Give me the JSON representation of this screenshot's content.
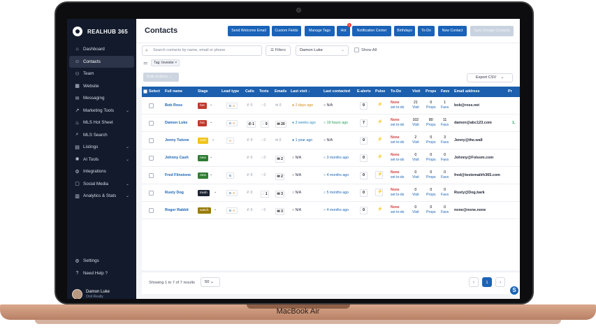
{
  "device_label": "MacBook Air",
  "brand": "REALHUB 365",
  "sidebar": {
    "items": [
      {
        "label": "Dashboard",
        "icon": "home-icon",
        "glyph": "⌂"
      },
      {
        "label": "Contacts",
        "icon": "contacts-icon",
        "glyph": "☺",
        "active": true
      },
      {
        "label": "Team",
        "icon": "team-icon",
        "glyph": "⚇"
      },
      {
        "label": "Website",
        "icon": "website-icon",
        "glyph": "▦"
      },
      {
        "label": "Messaging",
        "icon": "messaging-icon",
        "glyph": "✉"
      },
      {
        "label": "Marketing Tools",
        "icon": "chart-icon",
        "glyph": "↗",
        "chevron": true
      },
      {
        "label": "MLS Hot Sheet",
        "icon": "flame-icon",
        "glyph": "♨"
      },
      {
        "label": "MLS Search",
        "icon": "search-icon",
        "glyph": "⌕"
      },
      {
        "label": "Listings",
        "icon": "listings-icon",
        "glyph": "▤",
        "chevron": true
      },
      {
        "label": "AI Tools",
        "icon": "ai-icon",
        "glyph": "✺",
        "chevron": true
      },
      {
        "label": "Integrations",
        "icon": "integrations-icon",
        "glyph": "⚙"
      },
      {
        "label": "Social Media",
        "icon": "social-icon",
        "glyph": "▢",
        "chevron": true
      },
      {
        "label": "Analytics & Stats",
        "icon": "analytics-icon",
        "glyph": "▥",
        "chevron": true
      }
    ],
    "settings": "Settings",
    "help": "Need Help ?",
    "user_name": "Damon Luke",
    "user_org": "Onit Realty"
  },
  "header": {
    "title": "Contacts",
    "buttons": [
      "Send Welcome Email",
      "Custom Fields",
      "Manage Tags",
      "Hot",
      "Notification Center",
      "Birthdays",
      "To-Do",
      "New Contact",
      "Sync Google Contacts"
    ],
    "hot_badge": "1"
  },
  "filters": {
    "search_placeholder": "Search contacts by name, email or phone",
    "filters_label": "Filters",
    "selected_user": "Damon Luke",
    "show_all": "Show All",
    "tag": "Tag: Investor ×",
    "bulk_actions": "Bulk actions",
    "export": "Export CSV"
  },
  "table": {
    "headers": [
      "Select",
      "Full name",
      "Stage",
      "Lead type",
      "Calls",
      "Texts",
      "Emails",
      "Last visit ↓",
      "Last contacted",
      "E-alerts",
      "Pulse",
      "To-Do",
      "Visit",
      "Props",
      "Favs",
      "Email address",
      "Pr"
    ],
    "rows": [
      {
        "name": "Bob Ross",
        "stage": "hot",
        "stage_color": "#c0392b",
        "lead": [
          "B",
          "S"
        ],
        "calls": "0",
        "texts": "0",
        "emails": "0",
        "emails_box": false,
        "calls_box": false,
        "texts_box": false,
        "last_visit": "2 days ago",
        "lv_color": "#d68910",
        "last_contacted": "N/A",
        "lc_color": "#2b3243",
        "ealerts": "0",
        "pulse": "⚡",
        "pulse_green": false,
        "todo_none": "None",
        "todo_set": "set to-do",
        "visit": "21",
        "props": "0",
        "favs": "1",
        "email": "bob@ross.net",
        "extra": ""
      },
      {
        "name": "Damon Luke",
        "stage": "hot",
        "stage_color": "#c0392b",
        "lead": [
          "B",
          "S"
        ],
        "calls": "1",
        "texts": "9",
        "emails": "20",
        "emails_box": true,
        "calls_box": true,
        "texts_box": true,
        "last_visit": "3 weeks ago",
        "lv_color": "#2a8bbf",
        "last_contacted": "19 hours ago",
        "lc_color": "#1e9e57",
        "ealerts": "7",
        "pulse": "⚡",
        "pulse_green": false,
        "todo_none": "None",
        "todo_set": "set to-do",
        "visit": "102",
        "props": "80",
        "favs": "11",
        "email": "damon@abc123.com",
        "extra": "1."
      },
      {
        "name": "Jenny Tutone",
        "stage": "cold",
        "stage_color": "#f0c419",
        "lead": [
          "S"
        ],
        "calls": "0",
        "texts": "0",
        "emails": "0",
        "emails_box": false,
        "calls_box": false,
        "texts_box": false,
        "last_visit": "1 year ago",
        "lv_color": "#1b64b5",
        "last_contacted": "N/A",
        "lc_color": "#2b3243",
        "ealerts": "0",
        "pulse": "⚡",
        "pulse_green": false,
        "todo_none": "None",
        "todo_set": "set to-do",
        "visit": "2",
        "props": "0",
        "favs": "3",
        "email": "Jenny@the.wall",
        "extra": ""
      },
      {
        "name": "Johnny Cash",
        "stage": "new",
        "stage_color": "#2e7d32",
        "lead": [],
        "calls": "0",
        "texts": "0",
        "emails": "2",
        "emails_box": true,
        "calls_box": false,
        "texts_box": false,
        "last_visit": "N/A",
        "lv_color": "#2b3243",
        "last_contacted": "3 months ago",
        "lc_color": "#1b64b5",
        "ealerts": "0",
        "pulse": "⚡",
        "pulse_green": false,
        "todo_none": "None",
        "todo_set": "set to-do",
        "visit": "0",
        "props": "0",
        "favs": "0",
        "email": "Johnny@Folsom.com",
        "extra": ""
      },
      {
        "name": "Fred Flinstone",
        "stage": "new",
        "stage_color": "#2e7d32",
        "lead": [
          "B"
        ],
        "calls": "0",
        "texts": "0",
        "emails": "2",
        "emails_box": true,
        "calls_box": false,
        "texts_box": false,
        "last_visit": "N/A",
        "lv_color": "#2b3243",
        "last_contacted": "4 months ago",
        "lc_color": "#1b64b5",
        "ealerts": "0",
        "pulse": "⚡",
        "pulse_green": true,
        "todo_none": "None",
        "todo_set": "set to-do",
        "visit": "0",
        "props": "0",
        "favs": "0",
        "email": "fred@testemailrh365.com",
        "extra": ""
      },
      {
        "name": "Rusty Dog",
        "stage": "trash",
        "stage_color": "#1c2333",
        "lead": [
          "B",
          "S"
        ],
        "calls": "0",
        "texts": "1",
        "emails": "3",
        "emails_box": true,
        "calls_box": false,
        "texts_box": true,
        "last_visit": "N/A",
        "lv_color": "#2b3243",
        "last_contacted": "5 months ago",
        "lc_color": "#1b64b5",
        "ealerts": "0",
        "pulse": "⚡",
        "pulse_green": true,
        "todo_none": "None",
        "todo_set": "set to-do",
        "visit": "0",
        "props": "0",
        "favs": "0",
        "email": "Rusty@Dog.bark",
        "extra": ""
      },
      {
        "name": "Roger Rabbit",
        "stage": "watch",
        "stage_color": "#9a7b0a",
        "lead": [
          "B",
          "S"
        ],
        "calls": "0",
        "texts": "0",
        "emails": "3",
        "emails_box": true,
        "calls_box": false,
        "texts_box": false,
        "last_visit": "N/A",
        "lv_color": "#2b3243",
        "last_contacted": "4 months ago",
        "lc_color": "#1b64b5",
        "ealerts": "0",
        "pulse": "⚡",
        "pulse_green": false,
        "todo_none": "None",
        "todo_set": "set to-do",
        "visit": "0",
        "props": "0",
        "favs": "0",
        "email": "none@none.none",
        "extra": ""
      }
    ],
    "visit_label": "Visit",
    "props_label": "Props",
    "favs_label": "Favs"
  },
  "footer": {
    "showing": "Showing 1 to 7 of 7 results",
    "per_page": "50",
    "page": "1",
    "prev": "‹",
    "next": "›"
  },
  "colors": {
    "primary": "#1b64b5",
    "sidebar": "#121a2b"
  }
}
